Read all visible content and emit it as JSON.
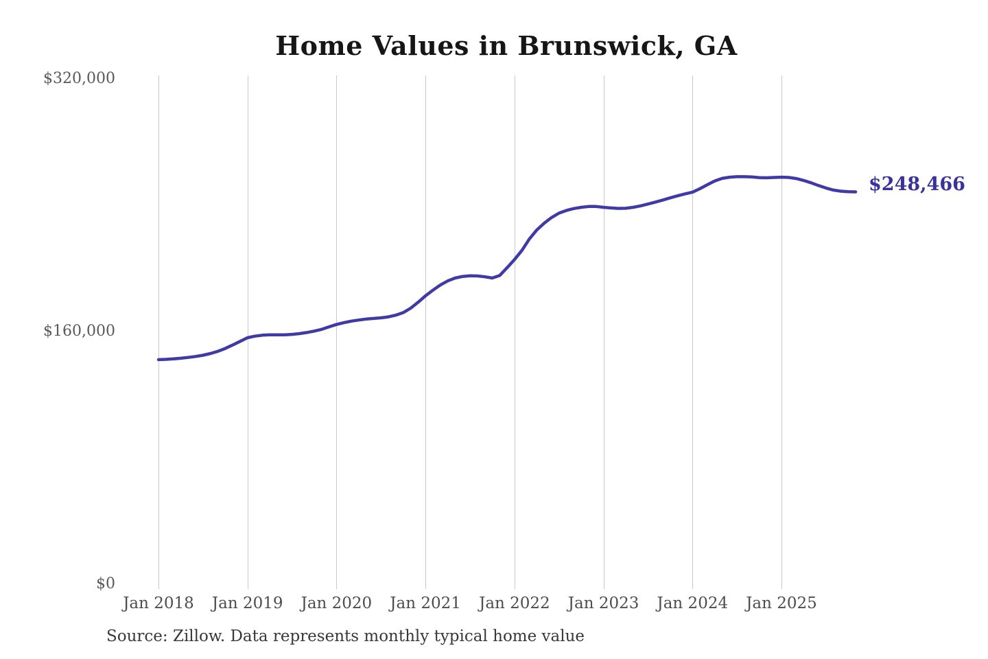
{
  "page": {
    "title": "Home Values in Brunswick, GA",
    "source_note": "Source: Zillow. Data represents monthly typical home value",
    "current_value_label": "$248,466"
  },
  "colors": {
    "line": "#403aa6",
    "annotation": "#39319c",
    "gridline": "#c9c9c9",
    "y_tick_text": "#595959",
    "x_tick_text": "#4d4d4d",
    "title_text": "#161616",
    "source_text": "#383838",
    "background": "#ffffff"
  },
  "chart_data": {
    "type": "line",
    "title": "Home Values in Brunswick, GA",
    "xlabel": "",
    "ylabel": "",
    "ylim": [
      0,
      320000
    ],
    "grid": "vertical-only",
    "legend": "none",
    "last_value_label": "$248,466",
    "y_ticks": [
      {
        "label": "$320,000",
        "value": 320000
      },
      {
        "label": "$160,000",
        "value": 160000
      },
      {
        "label": "$0",
        "value": 0
      }
    ],
    "x_ticks": [
      {
        "label": "Jan 2018",
        "month_index": 0
      },
      {
        "label": "Jan 2019",
        "month_index": 12
      },
      {
        "label": "Jan 2020",
        "month_index": 24
      },
      {
        "label": "Jan 2021",
        "month_index": 36
      },
      {
        "label": "Jan 2022",
        "month_index": 48
      },
      {
        "label": "Jan 2023",
        "month_index": 60
      },
      {
        "label": "Jan 2024",
        "month_index": 72
      },
      {
        "label": "Jan 2025",
        "month_index": 84
      }
    ],
    "series": [
      {
        "name": "Monthly typical home value",
        "start_month": "2018-01",
        "frequency": "monthly",
        "months": [
          "2018-01",
          "2018-02",
          "2018-03",
          "2018-04",
          "2018-05",
          "2018-06",
          "2018-07",
          "2018-08",
          "2018-09",
          "2018-10",
          "2018-11",
          "2018-12",
          "2019-01",
          "2019-02",
          "2019-03",
          "2019-04",
          "2019-05",
          "2019-06",
          "2019-07",
          "2019-08",
          "2019-09",
          "2019-10",
          "2019-11",
          "2019-12",
          "2020-01",
          "2020-02",
          "2020-03",
          "2020-04",
          "2020-05",
          "2020-06",
          "2020-07",
          "2020-08",
          "2020-09",
          "2020-10",
          "2020-11",
          "2020-12",
          "2021-01",
          "2021-02",
          "2021-03",
          "2021-04",
          "2021-05",
          "2021-06",
          "2021-07",
          "2021-08",
          "2021-09",
          "2021-10",
          "2021-11",
          "2021-12",
          "2022-01",
          "2022-02",
          "2022-03",
          "2022-04",
          "2022-05",
          "2022-06",
          "2022-07",
          "2022-08",
          "2022-09",
          "2022-10",
          "2022-11",
          "2022-12",
          "2023-01",
          "2023-02",
          "2023-03",
          "2023-04",
          "2023-05",
          "2023-06",
          "2023-07",
          "2023-08",
          "2023-09",
          "2023-10",
          "2023-11",
          "2023-12",
          "2024-01",
          "2024-02",
          "2024-03",
          "2024-04",
          "2024-05",
          "2024-06",
          "2024-07",
          "2024-08",
          "2024-09",
          "2024-10",
          "2024-11",
          "2024-12",
          "2025-01",
          "2025-02",
          "2025-03",
          "2025-04",
          "2025-05",
          "2025-06",
          "2025-07",
          "2025-08",
          "2025-09",
          "2025-10",
          "2025-11"
        ],
        "values": [
          142200,
          142400,
          142700,
          143100,
          143600,
          144200,
          145000,
          146100,
          147500,
          149300,
          151500,
          153800,
          156100,
          157100,
          157700,
          157900,
          157900,
          157900,
          158200,
          158700,
          159400,
          160300,
          161400,
          163000,
          164500,
          165600,
          166600,
          167300,
          167900,
          168300,
          168700,
          169300,
          170400,
          172000,
          174800,
          178500,
          182600,
          186200,
          189500,
          192100,
          193900,
          194900,
          195300,
          195200,
          194700,
          193900,
          195500,
          200400,
          205600,
          211400,
          218600,
          224300,
          228600,
          232200,
          235000,
          236700,
          237900,
          238700,
          239200,
          239200,
          238700,
          238300,
          238000,
          238100,
          238700,
          239600,
          240800,
          242000,
          243300,
          244700,
          246000,
          247200,
          248300,
          250500,
          253000,
          255400,
          257000,
          257800,
          258100,
          258100,
          257900,
          257500,
          257400,
          257600,
          257800,
          257600,
          256900,
          255700,
          254200,
          252500,
          250900,
          249600,
          248900,
          248600,
          248466
        ]
      }
    ]
  }
}
